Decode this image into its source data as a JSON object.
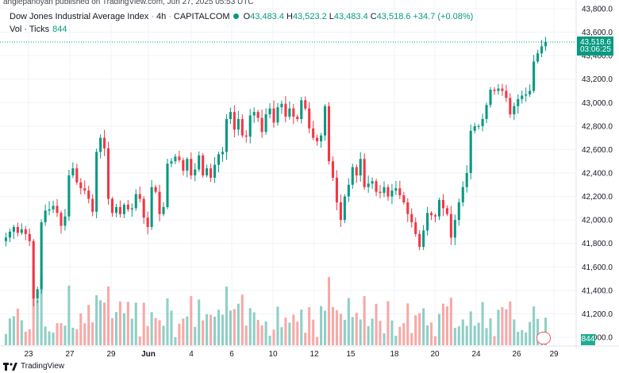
{
  "header": {
    "published": "anglepanoyan published on TradingView.com, Jun 27, 2025 05:53 UTC"
  },
  "legend": {
    "symbol": "Dow Jones Industrial Average Index",
    "interval": "4h",
    "exchange": "CAPITALCOM",
    "open_label": "O",
    "open_value": "43,483.4",
    "high_label": "H",
    "high_value": "43,523.2",
    "low_label": "L",
    "low_value": "43,483.4",
    "close_label": "C",
    "close_value": "43,518.6",
    "change": "+34.7 (+0.08%)",
    "volume_label": "Vol · Ticks",
    "volume_value": "844"
  },
  "price_axis": {
    "ticks": [
      "43,800.0",
      "43,600.0",
      "43,400.0",
      "43,200.0",
      "43,000.0",
      "42,800.0",
      "42,600.0",
      "42,400.0",
      "42,200.0",
      "42,000.0",
      "41,800.0",
      "41,600.0",
      "41,400.0",
      "41,200.0",
      "41,000.0"
    ],
    "tick_values": [
      43800,
      43600,
      43400,
      43200,
      43000,
      42800,
      42600,
      42400,
      42200,
      42000,
      41800,
      41600,
      41400,
      41200,
      41000
    ],
    "last_price": "43,518.6",
    "countdown": "03:06:25",
    "volume_tag": "844"
  },
  "time_axis": {
    "labels": [
      "23",
      "27",
      "29",
      "Jun",
      "4",
      "6",
      "10",
      "12",
      "15",
      "18",
      "20",
      "24",
      "26",
      "29"
    ]
  },
  "footer": {
    "brand": "TradingView"
  },
  "colors": {
    "up": "#089981",
    "down": "#f23645",
    "vol_up": "#8fcfc5",
    "vol_down": "#f7a9a7",
    "grid": "#f0f3fa",
    "axis_text": "#131722"
  },
  "chart_data": {
    "type": "candlestick",
    "title": "Dow Jones Industrial Average Index · 4h · CAPITALCOM",
    "ylim": [
      41000,
      43850
    ],
    "volume_series": "Vol · Ticks",
    "candles_close": [
      41850,
      41900,
      41940,
      41890,
      41920,
      41880,
      41820,
      41330,
      41410,
      41980,
      42080,
      42090,
      42120,
      42060,
      41950,
      42030,
      42380,
      42440,
      42320,
      42270,
      42250,
      42180,
      42070,
      42580,
      42700,
      42610,
      42180,
      42060,
      42110,
      42050,
      42130,
      42090,
      42100,
      42220,
      42180,
      42020,
      41940,
      42280,
      42240,
      42050,
      42110,
      42480,
      42500,
      42540,
      42510,
      42420,
      42520,
      42380,
      42430,
      42550,
      42380,
      42440,
      42360,
      42470,
      42560,
      42580,
      42860,
      42920,
      42770,
      42860,
      42720,
      42710,
      42890,
      42920,
      42870,
      42750,
      42900,
      42950,
      42830,
      42960,
      42990,
      42880,
      42950,
      42880,
      42860,
      43020,
      42950,
      42780,
      42700,
      42670,
      42720,
      42970,
      42500,
      42360,
      42150,
      42000,
      42200,
      42300,
      42450,
      42380,
      42520,
      42280,
      42310,
      42330,
      42240,
      42230,
      42280,
      42200,
      42250,
      42270,
      42210,
      42150,
      42050,
      41980,
      41880,
      41770,
      41910,
      42060,
      42040,
      42030,
      42170,
      42100,
      42050,
      41850,
      42000,
      42150,
      42280,
      42400,
      42760,
      42800,
      42800,
      42860,
      42980,
      43110,
      43100,
      43120,
      43100,
      43040,
      42900,
      42970,
      43030,
      43060,
      43070,
      43100,
      43350,
      43420,
      43480,
      43518.6
    ],
    "volume_note": "volume bars per candle, ticks"
  }
}
